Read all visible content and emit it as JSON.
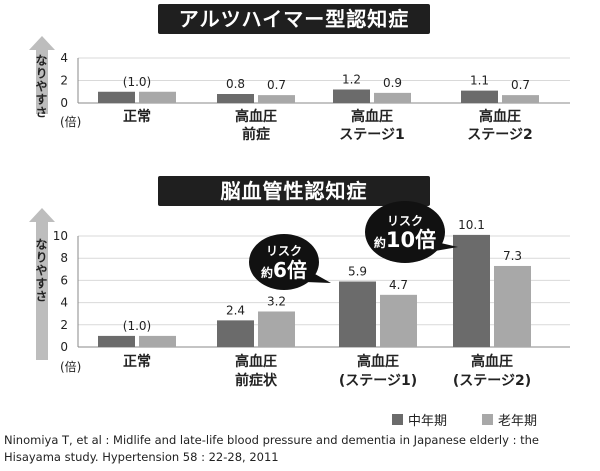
{
  "chart_data": [
    {
      "type": "bar",
      "title": "アルツハイマー型認知症",
      "ylabel": "なりやすさ",
      "unit": "(倍)",
      "ylim": [
        0,
        4
      ],
      "yticks": [
        0,
        2,
        4
      ],
      "categories": [
        [
          "正常"
        ],
        [
          "高血圧",
          "前症"
        ],
        [
          "高血圧",
          "ステージ1"
        ],
        [
          "高血圧",
          "ステージ2"
        ]
      ],
      "series": [
        {
          "name": "中年期",
          "color": "#6b6b6b",
          "values": [
            1.0,
            0.8,
            1.2,
            1.1
          ],
          "labels": [
            "(1.0)",
            "0.8",
            "1.2",
            "1.1"
          ]
        },
        {
          "name": "老年期",
          "color": "#a8a8a8",
          "values": [
            1.0,
            0.7,
            0.9,
            0.7
          ],
          "labels": [
            "",
            "0.7",
            "0.9",
            "0.7"
          ]
        }
      ],
      "grid": true
    },
    {
      "type": "bar",
      "title": "脳血管性認知症",
      "ylabel": "なりやすさ",
      "unit": "(倍)",
      "ylim": [
        0,
        10
      ],
      "yticks": [
        0,
        2,
        4,
        6,
        8,
        10
      ],
      "categories": [
        [
          "正常"
        ],
        [
          "高血圧",
          "前症状"
        ],
        [
          "高血圧",
          "(ステージ1)"
        ],
        [
          "高血圧",
          "(ステージ2)"
        ]
      ],
      "series": [
        {
          "name": "中年期",
          "color": "#6b6b6b",
          "values": [
            1.0,
            2.4,
            5.9,
            10.1
          ],
          "labels": [
            "(1.0)",
            "2.4",
            "5.9",
            "10.1"
          ]
        },
        {
          "name": "老年期",
          "color": "#a8a8a8",
          "values": [
            1.0,
            3.2,
            4.7,
            7.3
          ],
          "labels": [
            "",
            "3.2",
            "4.7",
            "7.3"
          ]
        }
      ],
      "annotations": [
        {
          "category": 2,
          "line1": "リスク",
          "prefix": "約",
          "number": "6倍"
        },
        {
          "category": 3,
          "line1": "リスク",
          "prefix": "約",
          "number": "10倍"
        }
      ],
      "grid": true
    }
  ],
  "legend": {
    "middle": {
      "label": "中年期",
      "color": "#6b6b6b"
    },
    "old": {
      "label": "老年期",
      "color": "#a8a8a8"
    }
  },
  "citation": "Ninomiya T, et al : Midlife and late-life blood pressure and dementia in Japanese elderly : the Hisayama study. Hypertension 58 : 22-28, 2011"
}
